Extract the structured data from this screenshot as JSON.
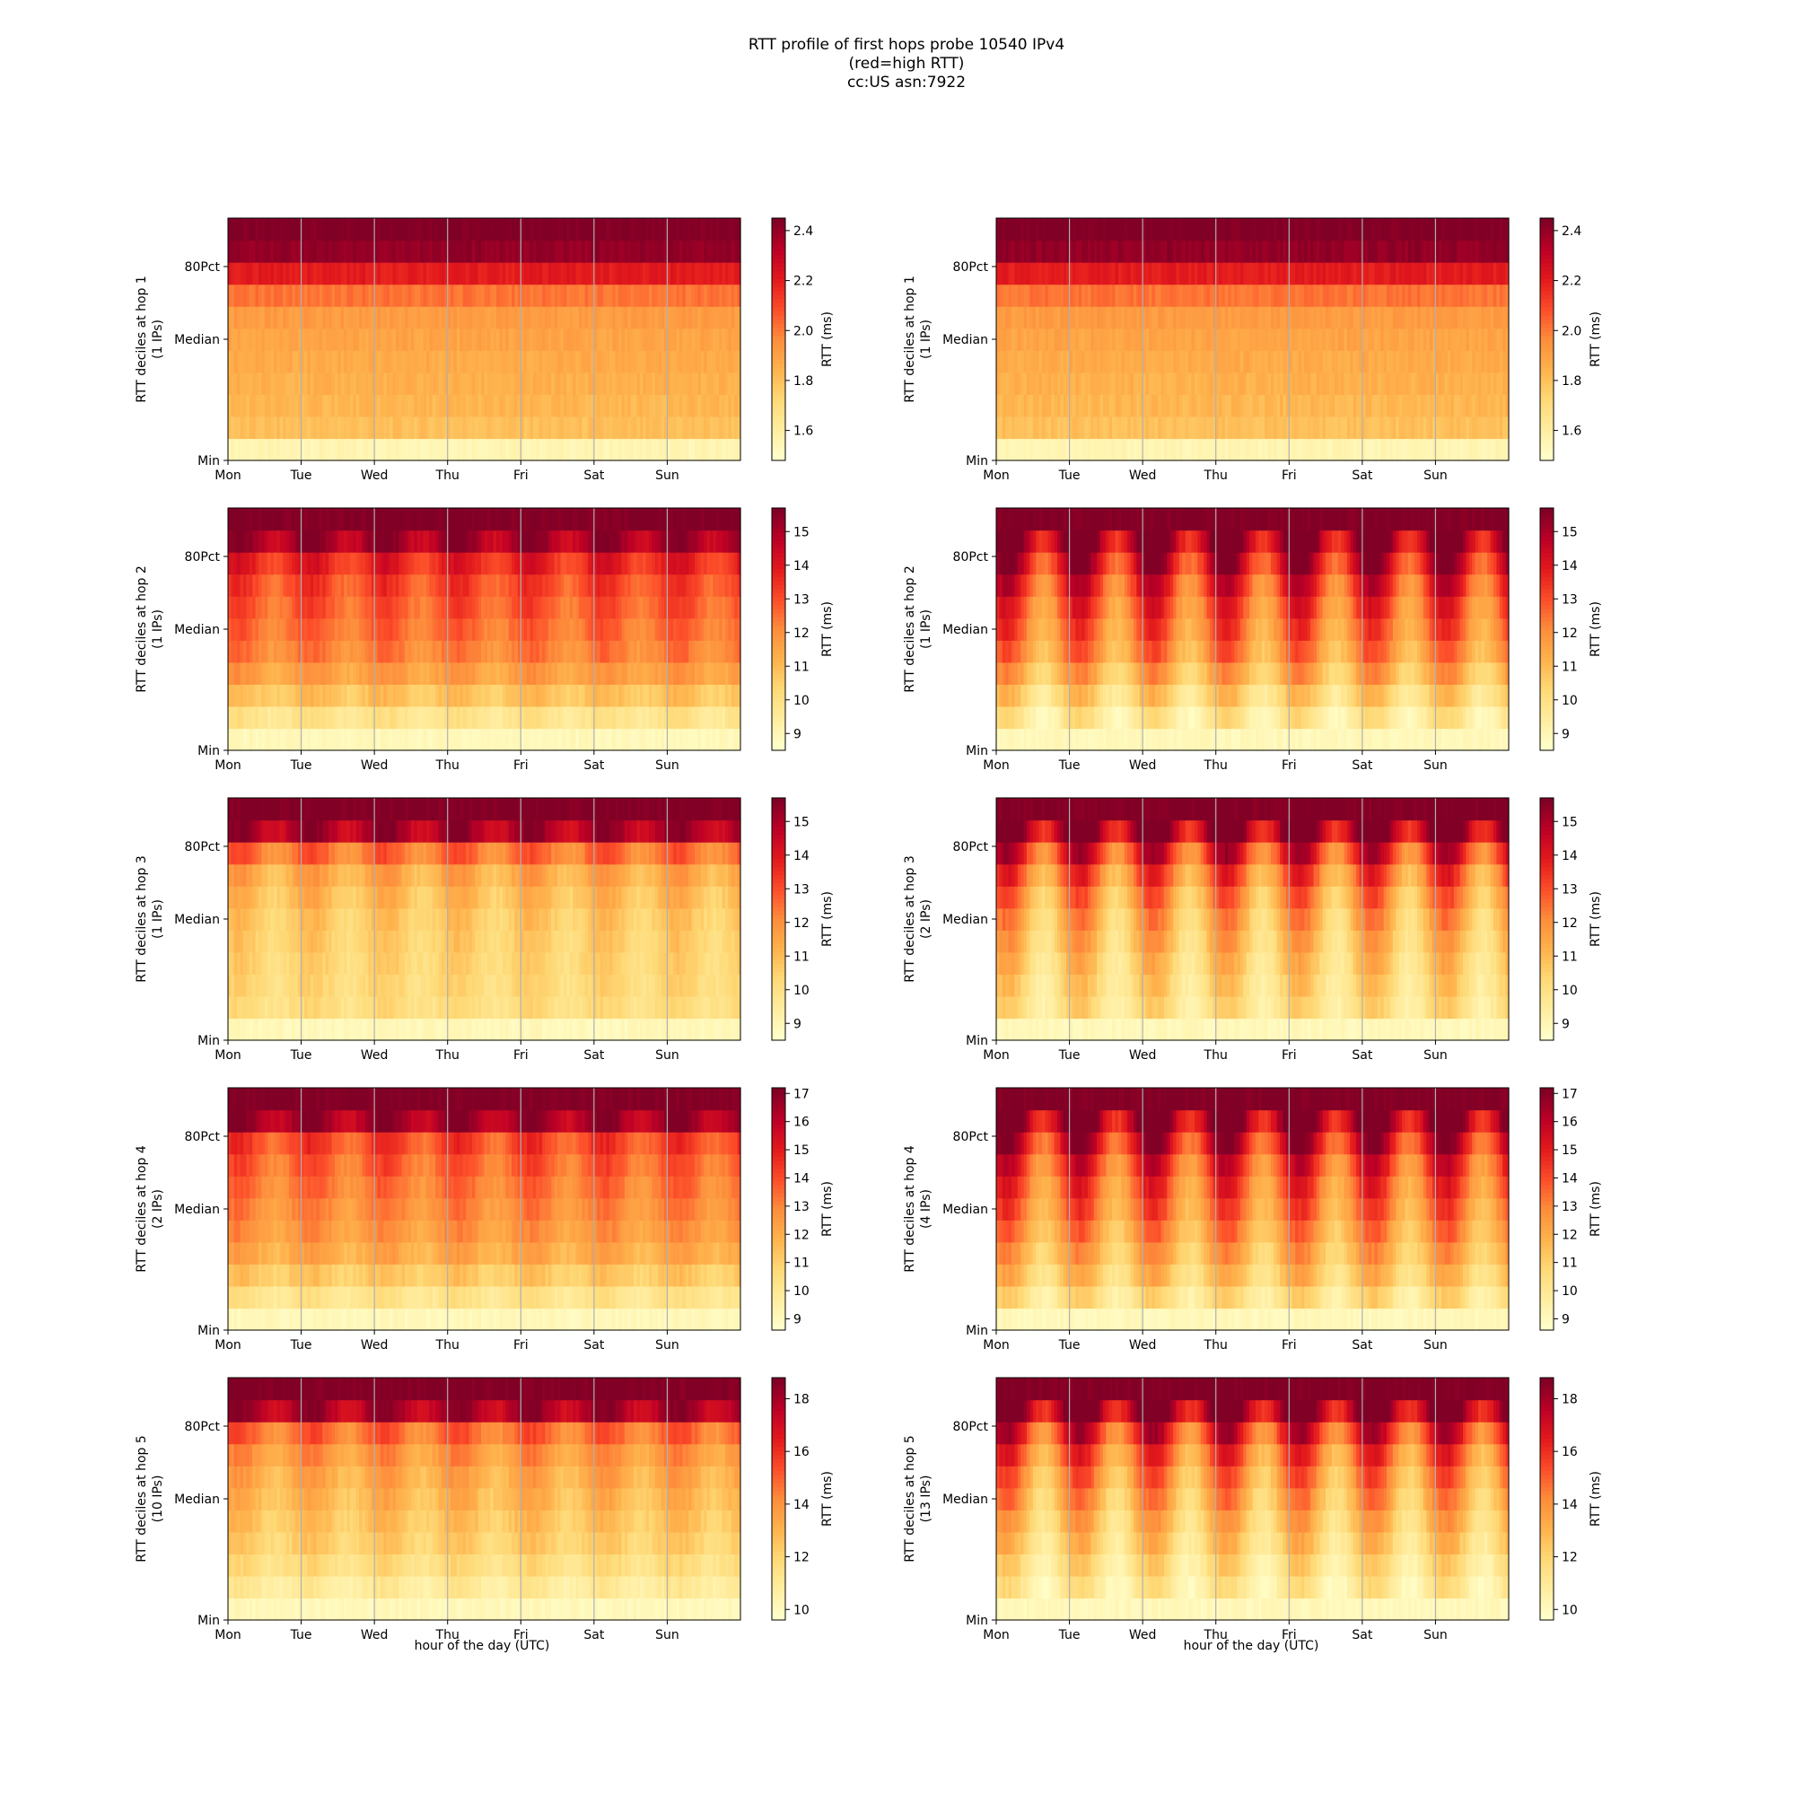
{
  "figure": {
    "title_lines": [
      "RTT profile of first hops probe 10540 IPv4",
      "(red=high RTT)",
      "cc:US asn:7922"
    ],
    "xlabel": "hour of the day (UTC)"
  },
  "chart_data": {
    "type": "heatmap",
    "x_ticks": [
      "Mon",
      "Tue",
      "Wed",
      "Thu",
      "Fri",
      "Sat",
      "Sun"
    ],
    "y_ticks": [
      "Min",
      "Median",
      "80Pct"
    ],
    "colormap": "YlOrRd",
    "panels": [
      {
        "hop": 1,
        "column": "left",
        "ylabel": "RTT deciles at hop 1",
        "ips": "(1 IPs)",
        "cbar_label": "RTT (ms)",
        "cbar_ticks": [
          1.6,
          1.8,
          2.0,
          2.2,
          2.4
        ],
        "cbar_tick_labels": [
          "1.6",
          "1.8",
          "2.0",
          "2.2",
          "2.4"
        ],
        "vmin": 1.48,
        "vmax": 2.45,
        "pattern": "flat",
        "decile_levels": [
          0.07,
          0.33,
          0.36,
          0.38,
          0.4,
          0.42,
          0.45,
          0.55,
          0.75,
          0.96,
          1.0
        ]
      },
      {
        "hop": 1,
        "column": "right",
        "ylabel": "RTT deciles at hop 1",
        "ips": "(1 IPs)",
        "cbar_label": "RTT (ms)",
        "cbar_ticks": [
          1.6,
          1.8,
          2.0,
          2.2,
          2.4
        ],
        "cbar_tick_labels": [
          "1.6",
          "1.8",
          "2.0",
          "2.2",
          "2.4"
        ],
        "vmin": 1.48,
        "vmax": 2.45,
        "pattern": "flat",
        "decile_levels": [
          0.07,
          0.33,
          0.36,
          0.38,
          0.4,
          0.42,
          0.45,
          0.55,
          0.75,
          0.96,
          1.0
        ]
      },
      {
        "hop": 2,
        "column": "left",
        "ylabel": "RTT deciles at hop 2",
        "ips": "(1 IPs)",
        "cbar_label": "RTT (ms)",
        "cbar_ticks": [
          9,
          10,
          11,
          12,
          13,
          14,
          15
        ],
        "cbar_tick_labels": [
          "9",
          "10",
          "11",
          "12",
          "13",
          "14",
          "15"
        ],
        "vmin": 8.5,
        "vmax": 15.7,
        "pattern": "mild",
        "decile_levels": [
          0.05,
          0.18,
          0.32,
          0.44,
          0.52,
          0.56,
          0.6,
          0.64,
          0.72,
          0.92,
          1.0
        ]
      },
      {
        "hop": 2,
        "column": "right",
        "ylabel": "RTT deciles at hop 2",
        "ips": "(1 IPs)",
        "cbar_label": "RTT (ms)",
        "cbar_ticks": [
          9,
          10,
          11,
          12,
          13,
          14,
          15
        ],
        "cbar_tick_labels": [
          "9",
          "10",
          "11",
          "12",
          "13",
          "14",
          "15"
        ],
        "vmin": 8.5,
        "vmax": 15.7,
        "pattern": "strong",
        "decile_levels": [
          0.05,
          0.15,
          0.26,
          0.38,
          0.48,
          0.54,
          0.6,
          0.68,
          0.8,
          0.95,
          1.0
        ]
      },
      {
        "hop": 3,
        "column": "left",
        "ylabel": "RTT deciles at hop 3",
        "ips": "(1 IPs)",
        "cbar_label": "RTT (ms)",
        "cbar_ticks": [
          9,
          10,
          11,
          12,
          13,
          14,
          15
        ],
        "cbar_tick_labels": [
          "9",
          "10",
          "11",
          "12",
          "13",
          "14",
          "15"
        ],
        "vmin": 8.5,
        "vmax": 15.7,
        "pattern": "mild",
        "decile_levels": [
          0.05,
          0.22,
          0.24,
          0.26,
          0.28,
          0.3,
          0.34,
          0.4,
          0.55,
          0.9,
          1.0
        ]
      },
      {
        "hop": 3,
        "column": "right",
        "ylabel": "RTT deciles at hop 3",
        "ips": "(2 IPs)",
        "cbar_label": "RTT (ms)",
        "cbar_ticks": [
          9,
          10,
          11,
          12,
          13,
          14,
          15
        ],
        "cbar_tick_labels": [
          "9",
          "10",
          "11",
          "12",
          "13",
          "14",
          "15"
        ],
        "vmin": 8.5,
        "vmax": 15.7,
        "pattern": "strong",
        "decile_levels": [
          0.05,
          0.2,
          0.24,
          0.28,
          0.33,
          0.38,
          0.45,
          0.55,
          0.7,
          0.95,
          1.0
        ]
      },
      {
        "hop": 4,
        "column": "left",
        "ylabel": "RTT deciles at hop 4",
        "ips": "(2 IPs)",
        "cbar_label": "RTT (ms)",
        "cbar_ticks": [
          9,
          10,
          11,
          12,
          13,
          14,
          15,
          16,
          17
        ],
        "cbar_tick_labels": [
          "9",
          "10",
          "11",
          "12",
          "13",
          "14",
          "15",
          "16",
          "17"
        ],
        "vmin": 8.6,
        "vmax": 17.2,
        "pattern": "mild",
        "decile_levels": [
          0.05,
          0.18,
          0.3,
          0.4,
          0.46,
          0.5,
          0.54,
          0.58,
          0.64,
          0.92,
          1.0
        ]
      },
      {
        "hop": 4,
        "column": "right",
        "ylabel": "RTT deciles at hop 4",
        "ips": "(4 IPs)",
        "cbar_label": "RTT (ms)",
        "cbar_ticks": [
          9,
          10,
          11,
          12,
          13,
          14,
          15,
          16,
          17
        ],
        "cbar_tick_labels": [
          "9",
          "10",
          "11",
          "12",
          "13",
          "14",
          "15",
          "16",
          "17"
        ],
        "vmin": 8.6,
        "vmax": 17.2,
        "pattern": "strong",
        "decile_levels": [
          0.05,
          0.2,
          0.3,
          0.38,
          0.45,
          0.52,
          0.58,
          0.66,
          0.78,
          0.95,
          1.0
        ]
      },
      {
        "hop": 5,
        "column": "left",
        "ylabel": "RTT deciles at hop 5",
        "ips": "(10 IPs)",
        "cbar_label": "RTT (ms)",
        "cbar_ticks": [
          10,
          12,
          14,
          16,
          18
        ],
        "cbar_tick_labels": [
          "10",
          "12",
          "14",
          "16",
          "18"
        ],
        "vmin": 9.6,
        "vmax": 18.8,
        "pattern": "mild",
        "decile_levels": [
          0.05,
          0.14,
          0.22,
          0.28,
          0.32,
          0.36,
          0.4,
          0.46,
          0.56,
          0.9,
          1.0
        ]
      },
      {
        "hop": 5,
        "column": "right",
        "ylabel": "RTT deciles at hop 5",
        "ips": "(13 IPs)",
        "cbar_label": "RTT (ms)",
        "cbar_ticks": [
          10,
          12,
          14,
          16,
          18
        ],
        "cbar_tick_labels": [
          "10",
          "12",
          "14",
          "16",
          "18"
        ],
        "vmin": 9.6,
        "vmax": 18.8,
        "pattern": "strong",
        "decile_levels": [
          0.05,
          0.14,
          0.2,
          0.27,
          0.33,
          0.4,
          0.47,
          0.56,
          0.7,
          0.95,
          1.0
        ]
      }
    ]
  }
}
